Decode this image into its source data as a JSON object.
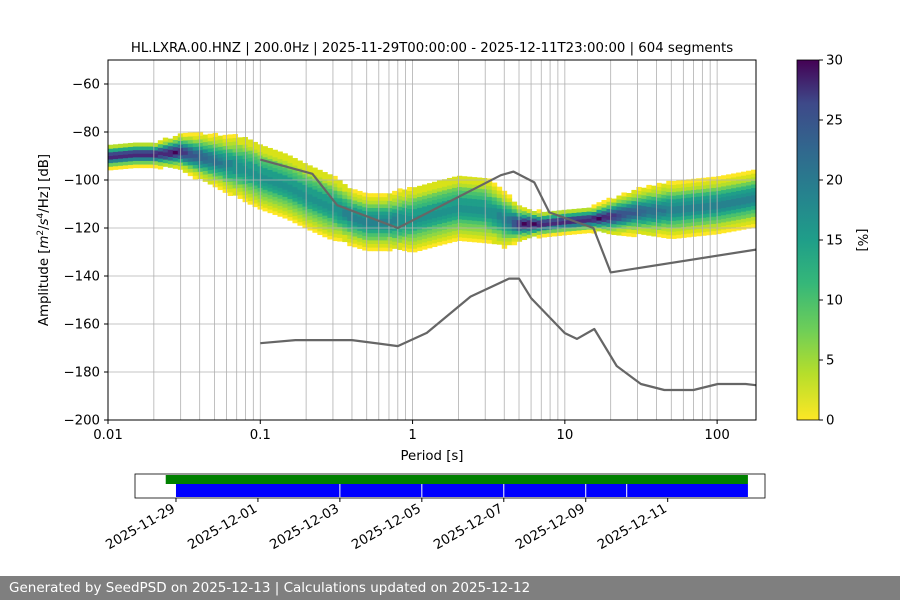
{
  "colors": {
    "footer_bg": "#7f7f7f",
    "noise_model": "#666666",
    "coverage_top": "#008000",
    "coverage_bottom": "#0000ff",
    "colormap": "viridis_r"
  },
  "chart_data": [
    {
      "type": "heatmap",
      "title": "HL.LXRA.00.HNZ | 200.0Hz | 2025-11-29T00:00:00 - 2025-12-11T23:00:00 | 604 segments",
      "xlabel": "Period [s]",
      "ylabel_parts": {
        "prefix": "Amplitude [",
        "unit_sup1": "2",
        "mid1": "/",
        "unit_sup2": "4",
        "suffix": "/Hz] [dB]",
        "m": "m",
        "s": "s"
      },
      "x_scale": "log",
      "xlim": [
        0.01,
        180
      ],
      "ylim": [
        -200,
        -50
      ],
      "x_ticks": [
        {
          "value": 0.01,
          "label": "0.01"
        },
        {
          "value": 0.1,
          "label": "0.1"
        },
        {
          "value": 1,
          "label": "1"
        },
        {
          "value": 10,
          "label": "10"
        },
        {
          "value": 100,
          "label": "100"
        }
      ],
      "y_ticks": [
        {
          "value": -60,
          "label": "−60"
        },
        {
          "value": -80,
          "label": "−80"
        },
        {
          "value": -100,
          "label": "−100"
        },
        {
          "value": -120,
          "label": "−120"
        },
        {
          "value": -140,
          "label": "−140"
        },
        {
          "value": -160,
          "label": "−160"
        },
        {
          "value": -180,
          "label": "−180"
        },
        {
          "value": -200,
          "label": "−200"
        }
      ],
      "grid": true,
      "colorbar": {
        "label": "[%]",
        "range": [
          0,
          30
        ],
        "ticks": [
          {
            "value": 0,
            "label": "0"
          },
          {
            "value": 5,
            "label": "5"
          },
          {
            "value": 10,
            "label": "10"
          },
          {
            "value": 15,
            "label": "15"
          },
          {
            "value": 20,
            "label": "20"
          },
          {
            "value": 25,
            "label": "25"
          },
          {
            "value": 30,
            "label": "30"
          }
        ]
      },
      "psd_mode": {
        "period": [
          0.01,
          0.015,
          0.02,
          0.03,
          0.04,
          0.06,
          0.08,
          0.1,
          0.15,
          0.2,
          0.3,
          0.4,
          0.5,
          0.7,
          1.0,
          1.5,
          2.0,
          3.0,
          4.0,
          5.0,
          7.0,
          10,
          15,
          20,
          30,
          50,
          70,
          100,
          150,
          180
        ],
        "db": [
          -91,
          -90,
          -90,
          -89,
          -91,
          -94,
          -96,
          -99,
          -103,
          -107,
          -112,
          -116,
          -118,
          -118,
          -117,
          -114,
          -112,
          -113,
          -117,
          -119,
          -119,
          -118,
          -117,
          -116,
          -114,
          -113,
          -112,
          -111,
          -109,
          -108
        ],
        "spread_db": [
          2,
          2,
          2,
          3,
          4,
          5,
          6,
          6,
          6,
          6,
          6,
          5,
          5,
          5,
          6,
          6,
          6,
          6,
          5,
          3,
          2,
          2,
          2,
          3,
          4,
          5,
          5,
          5,
          5,
          5
        ]
      },
      "noise_models": [
        {
          "name": "high",
          "period": [
            0.1,
            0.22,
            0.32,
            0.8,
            3.8,
            4.6,
            6.3,
            7.9,
            15.4,
            20,
            180
          ],
          "db": [
            -91.5,
            -97.4,
            -110.5,
            -120,
            -98,
            -96.5,
            -101,
            -113.5,
            -120,
            -138.5,
            -129
          ]
        },
        {
          "name": "low",
          "period": [
            0.1,
            0.17,
            0.4,
            0.8,
            1.24,
            2.4,
            4.3,
            5.0,
            6.0,
            10,
            12,
            15.6,
            21.9,
            31.6,
            45,
            70,
            101,
            154,
            180
          ],
          "db": [
            -168,
            -166.7,
            -166.7,
            -169.2,
            -163.7,
            -148.6,
            -141.1,
            -141.1,
            -149.2,
            -163.8,
            -166.2,
            -162.1,
            -177.5,
            -185,
            -187.5,
            -187.5,
            -185,
            -185,
            -185.5
          ]
        }
      ]
    },
    {
      "type": "bar",
      "x_axis": "date",
      "xlim": [
        "2025-11-28T00:00:00",
        "2025-12-13T09:00:00"
      ],
      "tick_labels": [
        "2025-11-29",
        "2025-12-01",
        "2025-12-03",
        "2025-12-05",
        "2025-12-07",
        "2025-12-09",
        "2025-12-11"
      ],
      "tick_dates": [
        "2025-11-29",
        "2025-12-01",
        "2025-12-03",
        "2025-12-05",
        "2025-12-07",
        "2025-12-09",
        "2025-12-11"
      ],
      "series": [
        {
          "row": "top",
          "color": "#008000",
          "start": "2025-11-28T18:00:00",
          "end": "2025-12-12T23:00:00",
          "gaps": []
        },
        {
          "row": "bottom",
          "color": "#0000ff",
          "start": "2025-11-29T00:00:00",
          "end": "2025-12-12T23:00:00",
          "gaps": [
            "2025-12-03T00:00:00",
            "2025-12-05T00:00:00",
            "2025-12-07T00:00:00",
            "2025-12-09T00:00:00",
            "2025-12-10T00:00:00"
          ]
        }
      ]
    }
  ],
  "footer": {
    "text": "Generated by SeedPSD on 2025-12-13 | Calculations updated on 2025-12-12"
  }
}
